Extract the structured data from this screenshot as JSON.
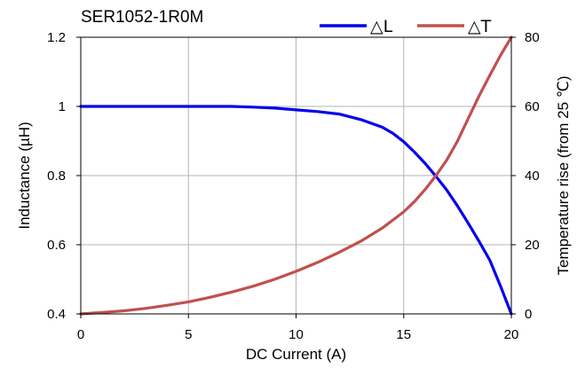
{
  "chart_data": {
    "type": "line",
    "title": "SER1052-1R0M",
    "xlabel": "DC Current (A)",
    "ylabel": "Inductance (µH)",
    "y2label": "Temperature rise (from 25 ℃)",
    "xlim": [
      0,
      20
    ],
    "ylim": [
      0.4,
      1.2
    ],
    "y2lim": [
      0,
      80
    ],
    "x_ticks": [
      0,
      5,
      10,
      15,
      20
    ],
    "y_ticks": [
      0.4,
      0.6,
      0.8,
      1,
      1.2
    ],
    "y2_ticks": [
      0,
      20,
      40,
      60,
      80
    ],
    "grid": true,
    "legend_position": "top-right",
    "series": [
      {
        "name": "△L",
        "axis": "left",
        "color": "#0000ee",
        "x": [
          0,
          2,
          4,
          6,
          7,
          8,
          9,
          10,
          11,
          12,
          13,
          14,
          14.5,
          15,
          15.5,
          16,
          16.5,
          17,
          17.5,
          18,
          18.5,
          19,
          19.5,
          20
        ],
        "y": [
          1.0,
          1.0,
          1.0,
          1.0,
          1.0,
          0.998,
          0.995,
          0.99,
          0.985,
          0.978,
          0.962,
          0.94,
          0.922,
          0.898,
          0.868,
          0.835,
          0.798,
          0.758,
          0.712,
          0.662,
          0.61,
          0.555,
          0.48,
          0.4
        ]
      },
      {
        "name": "△T",
        "axis": "right",
        "color": "#c0504d",
        "x": [
          0,
          1,
          2,
          3,
          4,
          5,
          6,
          7,
          8,
          9,
          10,
          11,
          12,
          13,
          14,
          15,
          15.5,
          16,
          16.5,
          17,
          17.5,
          18,
          18.5,
          19,
          19.5,
          20
        ],
        "y": [
          0,
          0.4,
          0.9,
          1.6,
          2.5,
          3.5,
          4.8,
          6.3,
          8.0,
          10.0,
          12.3,
          14.9,
          17.8,
          21.0,
          24.8,
          29.5,
          32.5,
          36.0,
          40.0,
          44.5,
          50.0,
          56.5,
          63.0,
          69.0,
          74.8,
          80.0
        ]
      }
    ]
  },
  "colors": {
    "axis": "#000000",
    "grid": "#b3b3b3",
    "background": "#ffffff"
  }
}
